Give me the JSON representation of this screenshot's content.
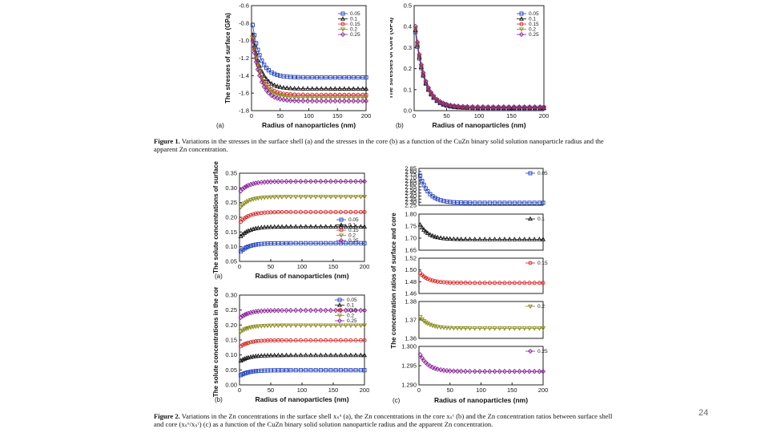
{
  "figure1": {
    "caption_label": "Figure 1.",
    "caption_text": "Variations in the stresses in the surface shell (a) and the stresses in the core (b) as a function of the CuZn binary solid solution nanoparticle radius and the apparent Zn concentration."
  },
  "figure2": {
    "caption_label": "Figure 2.",
    "caption_text": "Variations in the Zn concentrations in the surface shell xₛᵘ (a), the Zn concentrations in the core xₛᶜ (b) and the Zn concentration ratios between surface shell and core (xₛᵘ/xₛᶜ) (c) as a function of the CuZn binary solid solution nanoparticle radius and the apparent Zn concentration."
  },
  "page_number": "24",
  "series_colors": [
    "#1f3fbf",
    "#111111",
    "#d62020",
    "#8a8a1a",
    "#8a1f9a"
  ],
  "marker_shapes": [
    "square",
    "triangle-up",
    "circle",
    "triangle-down",
    "diamond"
  ],
  "chart_data": [
    {
      "id": "fig1a",
      "type": "line",
      "panel_label": "(a)",
      "xlabel": "Radius of nanoparticles (nm)",
      "ylabel": "The stresses of surface (GPa)",
      "xlim": [
        0,
        200
      ],
      "ylim": [
        -1.8,
        -0.6
      ],
      "xticks": [
        0,
        50,
        100,
        150,
        200
      ],
      "yticks": [
        -0.6,
        -0.8,
        -1.0,
        -1.2,
        -1.4,
        -1.6,
        -1.8
      ],
      "ytick_labels": [
        "-0.6",
        "-0.8",
        "-1.0",
        "-1.2",
        "-1.4",
        "-1.6",
        "-1.8"
      ],
      "legend": [
        "0.05",
        "0.1",
        "0.15",
        "0.2",
        "0.25"
      ],
      "curves": [
        {
          "start": -0.73,
          "end": -1.42,
          "tau": 14
        },
        {
          "start": -0.84,
          "end": -1.55,
          "tau": 14
        },
        {
          "start": -0.88,
          "end": -1.62,
          "tau": 14
        },
        {
          "start": -0.86,
          "end": -1.65,
          "tau": 14
        },
        {
          "start": -0.9,
          "end": -1.69,
          "tau": 14
        }
      ]
    },
    {
      "id": "fig1b",
      "type": "line",
      "panel_label": "(b)",
      "xlabel": "Radius of nanoparticles (nm)",
      "ylabel": "The stresses of core (GPa)",
      "xlim": [
        0,
        200
      ],
      "ylim": [
        0.0,
        0.5
      ],
      "xticks": [
        0,
        50,
        100,
        150,
        200
      ],
      "yticks": [
        0.0,
        0.1,
        0.2,
        0.3,
        0.4,
        0.5
      ],
      "ytick_labels": [
        "0.0",
        "0.1",
        "0.2",
        "0.3",
        "0.4",
        "0.5"
      ],
      "legend": [
        "0.05",
        "0.1",
        "0.15",
        "0.2",
        "0.25"
      ],
      "curves": [
        {
          "start": 0.43,
          "end": 0.012,
          "tau": 14
        },
        {
          "start": 0.44,
          "end": 0.013,
          "tau": 14
        },
        {
          "start": 0.45,
          "end": 0.015,
          "tau": 14
        },
        {
          "start": 0.45,
          "end": 0.016,
          "tau": 14
        },
        {
          "start": 0.46,
          "end": 0.018,
          "tau": 14
        }
      ]
    },
    {
      "id": "fig2a",
      "type": "line",
      "panel_label": "(a)",
      "xlabel": "Radius of nanoparticles (nm)",
      "ylabel": "The solute concentrations of surface",
      "xlim": [
        0,
        200
      ],
      "ylim": [
        0.05,
        0.35
      ],
      "xticks": [
        0,
        50,
        100,
        150,
        200
      ],
      "yticks": [
        0.05,
        0.1,
        0.15,
        0.2,
        0.25,
        0.3,
        0.35
      ],
      "ytick_labels": [
        "0.05",
        "0.10",
        "0.15",
        "0.20",
        "0.25",
        "0.30",
        "0.35"
      ],
      "legend": [
        "0.05",
        "0.1",
        "0.15",
        "0.2",
        "0.25"
      ],
      "curves": [
        {
          "start": 0.08,
          "end": 0.112,
          "tau": 14
        },
        {
          "start": 0.13,
          "end": 0.168,
          "tau": 14
        },
        {
          "start": 0.18,
          "end": 0.218,
          "tau": 14
        },
        {
          "start": 0.23,
          "end": 0.27,
          "tau": 14
        },
        {
          "start": 0.285,
          "end": 0.322,
          "tau": 14
        }
      ]
    },
    {
      "id": "fig2b",
      "type": "line",
      "panel_label": "(b)",
      "xlabel": "Radius of nanoparticles (nm)",
      "ylabel": "The solute concentrations in the core",
      "xlim": [
        0,
        200
      ],
      "ylim": [
        0.0,
        0.3
      ],
      "xticks": [
        0,
        50,
        100,
        150,
        200
      ],
      "yticks": [
        0.0,
        0.05,
        0.1,
        0.15,
        0.2,
        0.25,
        0.3
      ],
      "ytick_labels": [
        "0.00",
        "0.05",
        "0.10",
        "0.15",
        "0.20",
        "0.25",
        "0.30"
      ],
      "legend": [
        "0.05",
        "0.1",
        "0.15",
        "0.2",
        "0.25"
      ],
      "curves": [
        {
          "start": 0.03,
          "end": 0.049,
          "tau": 14
        },
        {
          "start": 0.078,
          "end": 0.099,
          "tau": 14
        },
        {
          "start": 0.126,
          "end": 0.149,
          "tau": 14
        },
        {
          "start": 0.175,
          "end": 0.199,
          "tau": 14
        },
        {
          "start": 0.222,
          "end": 0.249,
          "tau": 14
        }
      ]
    },
    {
      "id": "fig2c",
      "type": "line",
      "panel_label": "(c)",
      "xlabel": "Radius of nanoparticles (nm)",
      "ylabel": "The concentration ratios of surface and core",
      "xlim": [
        0,
        200
      ],
      "xticks": [
        0,
        50,
        100,
        150,
        200
      ],
      "subplots": [
        {
          "legend": "0.05",
          "ylim": [
            2.25,
            2.85
          ],
          "yticks": [
            2.25,
            2.3,
            2.35,
            2.4,
            2.45,
            2.5,
            2.55,
            2.6,
            2.65,
            2.7,
            2.75,
            2.8,
            2.85
          ],
          "ytick_labels": [
            "2.25",
            "2.30",
            "2.35",
            "2.40",
            "2.45",
            "2.50",
            "2.55",
            "2.60",
            "2.65",
            "2.70",
            "2.75",
            "2.80",
            "2.85"
          ],
          "curve": {
            "start": 2.8,
            "end": 2.29,
            "tau": 14
          }
        },
        {
          "legend": "0.1",
          "ylim": [
            1.65,
            1.8
          ],
          "yticks": [
            1.65,
            1.7,
            1.75,
            1.8
          ],
          "ytick_labels": [
            "1.65",
            "1.70",
            "1.75",
            "1.80"
          ],
          "curve": {
            "start": 1.765,
            "end": 1.695,
            "tau": 14
          }
        },
        {
          "legend": "0.15",
          "ylim": [
            1.46,
            1.52
          ],
          "yticks": [
            1.46,
            1.48,
            1.5,
            1.52
          ],
          "ytick_labels": [
            "1.46",
            "1.48",
            "1.50",
            "1.52"
          ],
          "curve": {
            "start": 1.497,
            "end": 1.478,
            "tau": 14
          }
        },
        {
          "legend": "0.2",
          "ylim": [
            1.36,
            1.38
          ],
          "yticks": [
            1.36,
            1.37,
            1.38
          ],
          "ytick_labels": [
            "1.36",
            "1.37",
            "1.38"
          ],
          "curve": {
            "start": 1.3725,
            "end": 1.3655,
            "tau": 14
          }
        },
        {
          "legend": "0.25",
          "ylim": [
            1.29,
            1.3
          ],
          "yticks": [
            1.29,
            1.295,
            1.3
          ],
          "ytick_labels": [
            "1.290",
            "1.295",
            "1.300"
          ],
          "curve": {
            "start": 1.2985,
            "end": 1.2935,
            "tau": 14
          }
        }
      ]
    }
  ]
}
